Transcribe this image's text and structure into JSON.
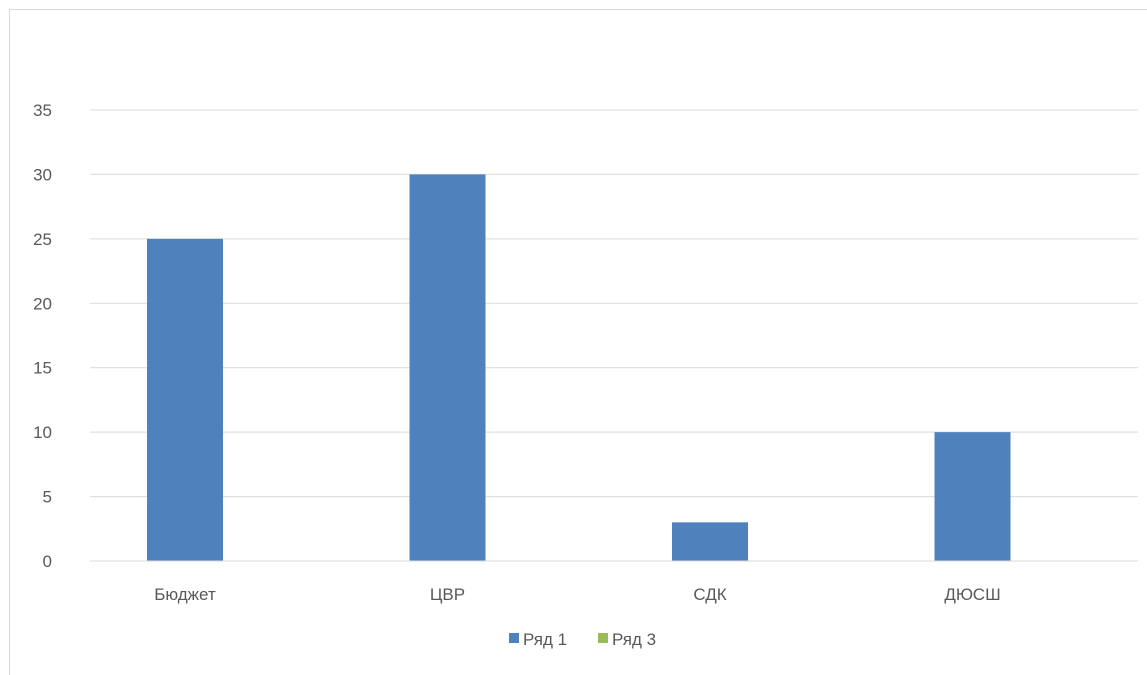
{
  "chart_data": {
    "type": "bar",
    "categories": [
      "Бюджет",
      "ЦВР",
      "СДК",
      "ДЮСШ"
    ],
    "series": [
      {
        "name": "Ряд 1",
        "values": [
          25,
          30,
          3,
          10
        ],
        "color": "#4f81bd"
      },
      {
        "name": "Ряд 3",
        "values": [
          0,
          0,
          0,
          0
        ],
        "color": "#9bbb59"
      }
    ],
    "ylim": [
      0,
      35
    ],
    "yticks": [
      0,
      5,
      10,
      15,
      20,
      25,
      30,
      35
    ],
    "grid": true,
    "legend": "bottom",
    "title": "",
    "xlabel": "",
    "ylabel": ""
  }
}
